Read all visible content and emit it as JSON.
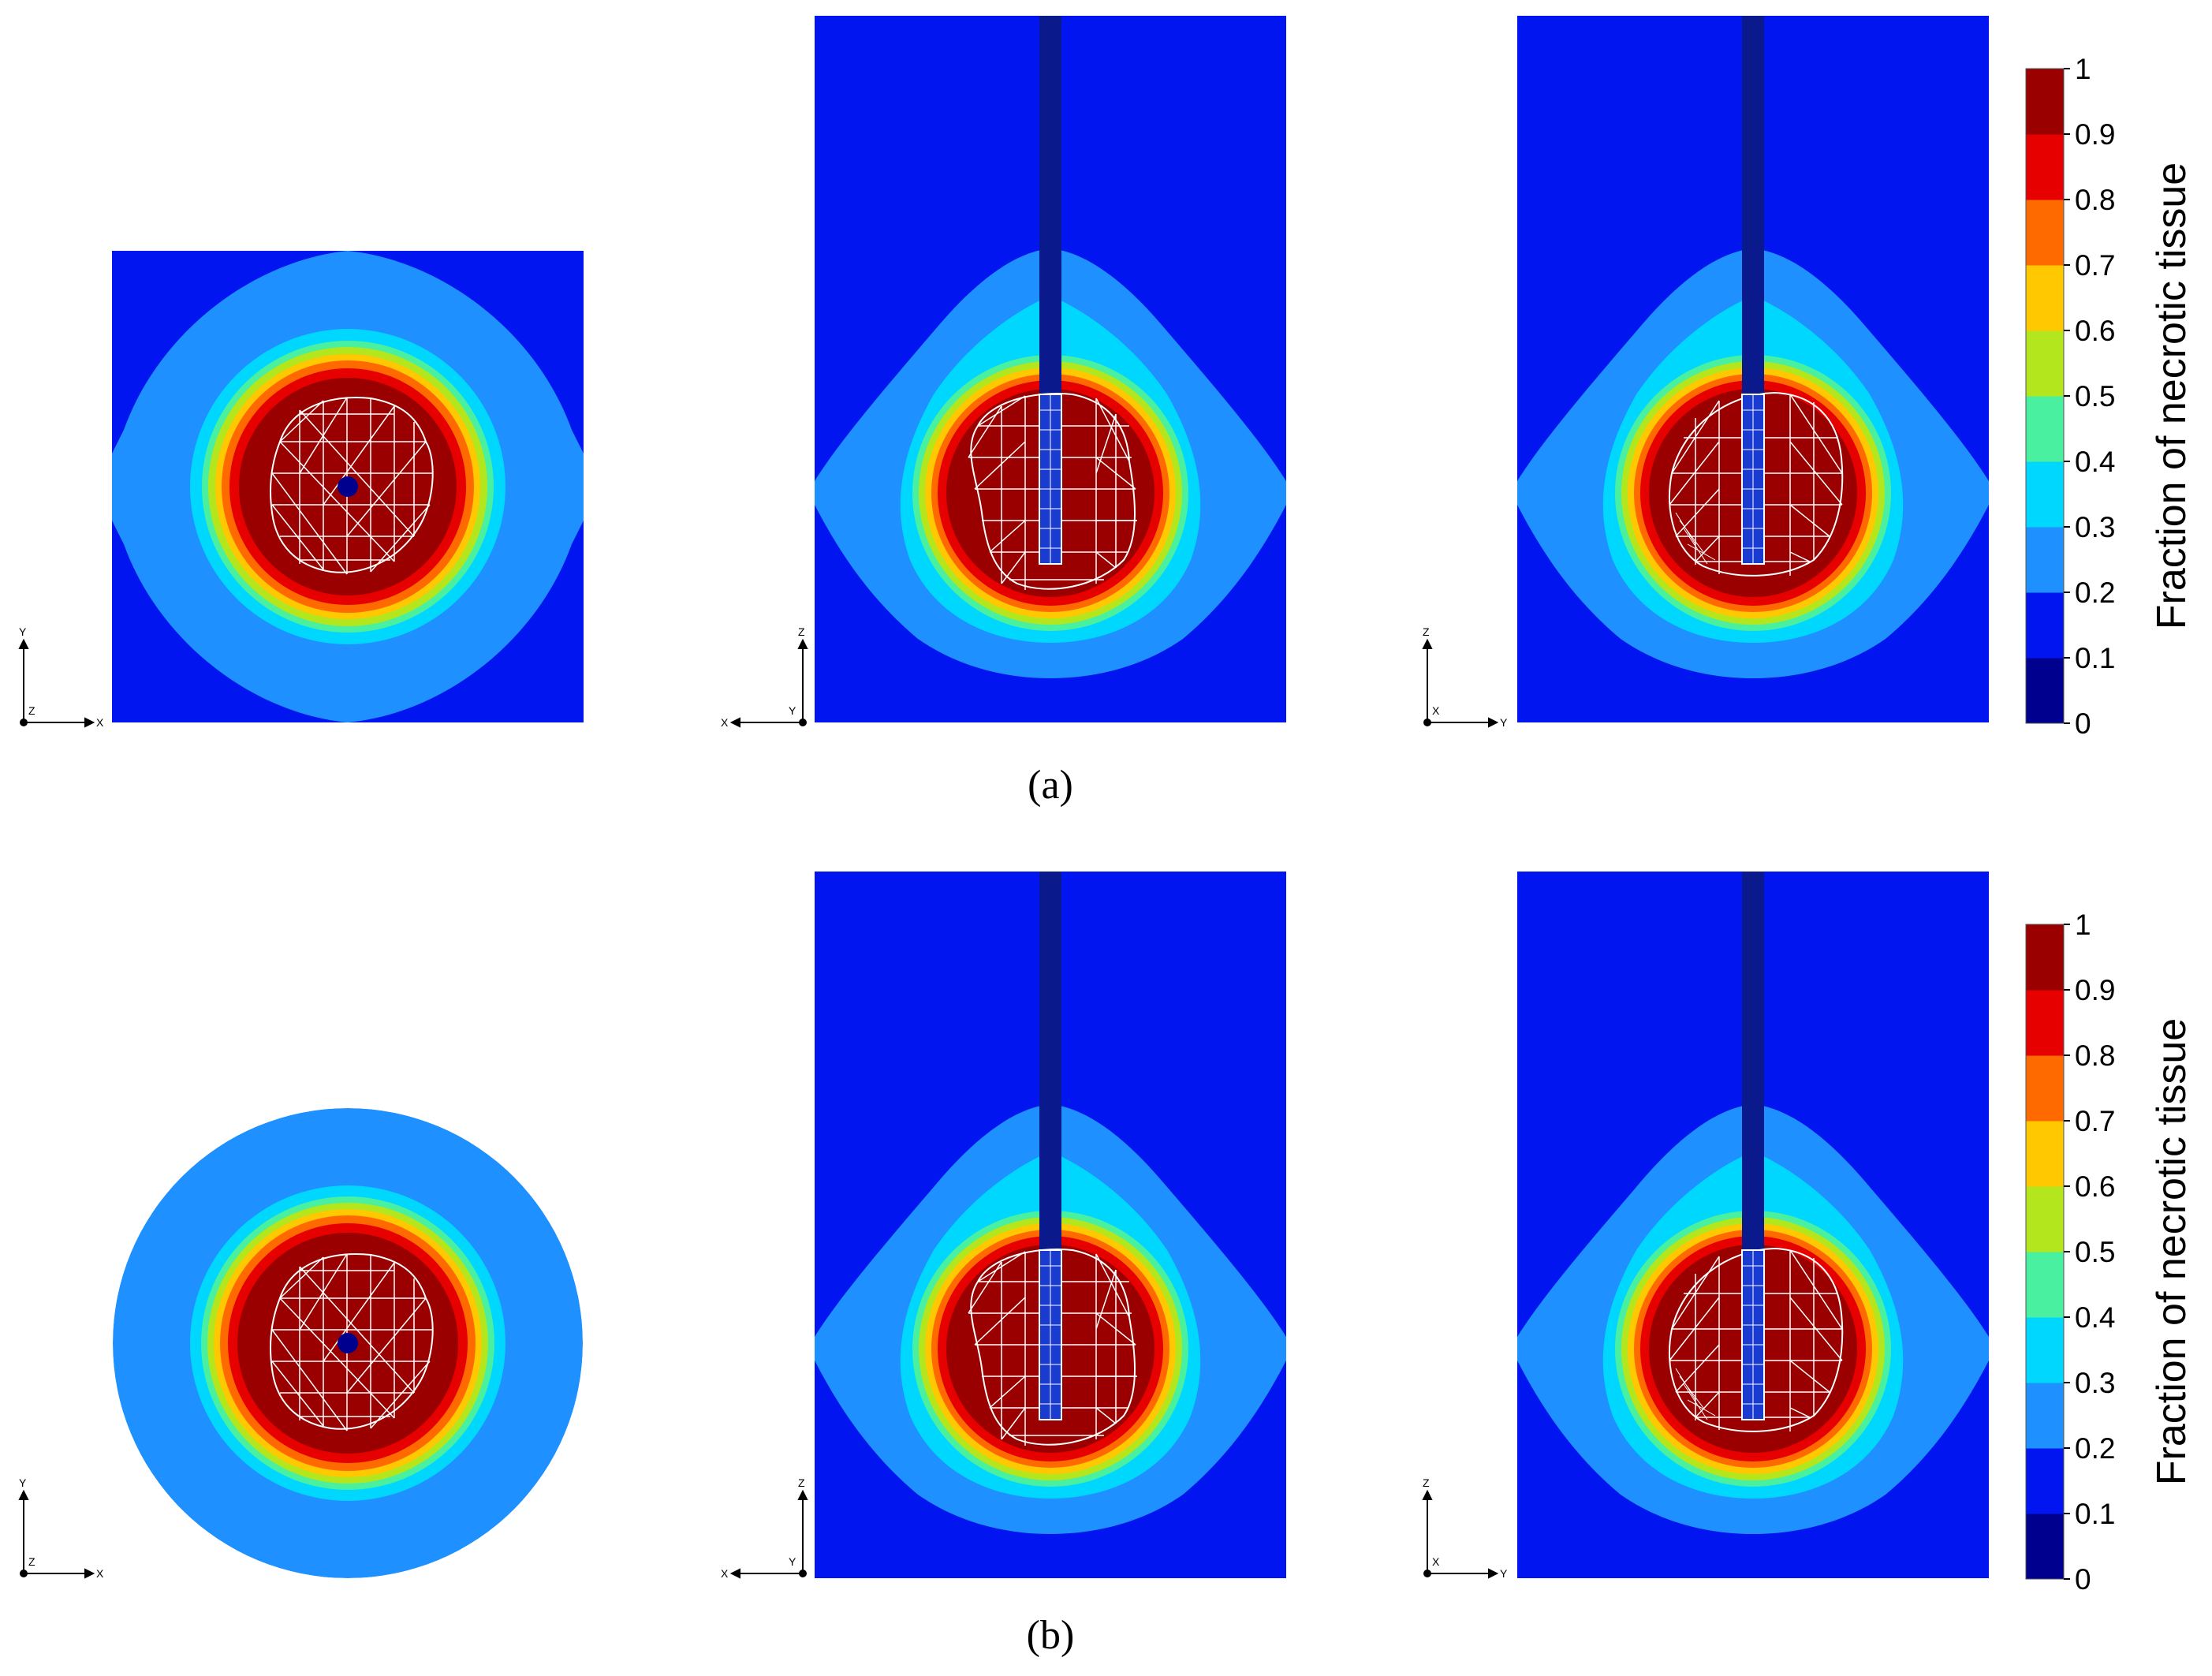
{
  "figure": {
    "rows": [
      {
        "caption": "(a)",
        "panels": [
          {
            "view": "top",
            "boundary": "square",
            "axes": {
              "up": "Y",
              "right": "X",
              "corner": "Z"
            }
          },
          {
            "view": "side",
            "boundary": "rectangle",
            "axes": {
              "up": "Z",
              "left": "X",
              "corner": "Y"
            }
          },
          {
            "view": "side",
            "boundary": "rectangle",
            "axes": {
              "up": "Z",
              "right": "Y",
              "corner": "X"
            }
          }
        ]
      },
      {
        "caption": "(b)",
        "panels": [
          {
            "view": "top",
            "boundary": "circle",
            "axes": {
              "up": "Y",
              "right": "X",
              "corner": "Z"
            }
          },
          {
            "view": "side",
            "boundary": "rectangle",
            "axes": {
              "up": "Z",
              "left": "X",
              "corner": "Y"
            }
          },
          {
            "view": "side",
            "boundary": "rectangle",
            "axes": {
              "up": "Z",
              "right": "Y",
              "corner": "X"
            }
          }
        ]
      }
    ],
    "colorbar": {
      "title": "Fraction of necrotic tissue",
      "ticks": [
        "0",
        "0.1",
        "0.2",
        "0.3",
        "0.4",
        "0.5",
        "0.6",
        "0.7",
        "0.8",
        "0.9",
        "1"
      ],
      "colors": [
        "#00008f",
        "#0015ef",
        "#1e90ff",
        "#00d7ff",
        "#48f0a0",
        "#b4e61e",
        "#ffc800",
        "#ff6a00",
        "#e60000",
        "#9b0000"
      ]
    }
  }
}
